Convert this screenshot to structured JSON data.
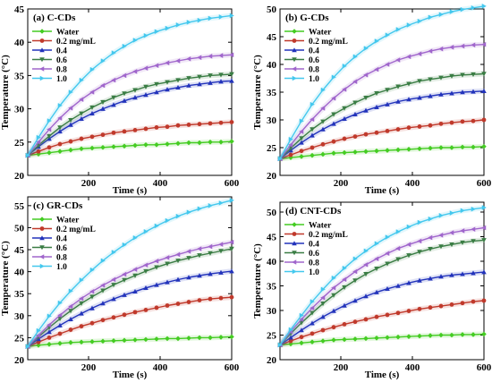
{
  "chart_data": [
    {
      "type": "line",
      "title": "(a) C-CDs",
      "xlabel": "Time (s)",
      "ylabel": "Temperature (°C)",
      "xlim": [
        30,
        600
      ],
      "ylim": [
        20,
        45
      ],
      "xticks": [
        200,
        400,
        600
      ],
      "yticks": [
        20,
        25,
        30,
        35,
        40,
        45
      ],
      "x": [
        30,
        60,
        90,
        120,
        150,
        180,
        210,
        240,
        270,
        300,
        330,
        360,
        390,
        420,
        450,
        480,
        510,
        540,
        570,
        600
      ],
      "legend_position": "top-left",
      "series": [
        {
          "name": "Water",
          "color": "#44cc22",
          "marker": "diamond",
          "values": [
            23.0,
            23.2,
            23.4,
            23.6,
            23.8,
            24.0,
            24.1,
            24.2,
            24.3,
            24.4,
            24.5,
            24.6,
            24.6,
            24.7,
            24.8,
            24.9,
            24.9,
            25.0,
            25.0,
            25.1
          ]
        },
        {
          "name": "0.2 mg/mL",
          "color": "#c0392b",
          "marker": "circle",
          "values": [
            23.0,
            23.6,
            24.2,
            24.7,
            25.1,
            25.5,
            25.8,
            26.1,
            26.4,
            26.6,
            26.8,
            27.0,
            27.2,
            27.3,
            27.5,
            27.6,
            27.7,
            27.8,
            27.9,
            28.0
          ]
        },
        {
          "name": "0.4",
          "color": "#2233bb",
          "marker": "triangle-up",
          "values": [
            23.0,
            24.3,
            25.5,
            26.6,
            27.6,
            28.5,
            29.3,
            30.0,
            30.6,
            31.2,
            31.7,
            32.1,
            32.5,
            32.9,
            33.2,
            33.5,
            33.7,
            33.9,
            34.1,
            34.2
          ]
        },
        {
          "name": "0.6",
          "color": "#3a7d44",
          "marker": "triangle-down",
          "values": [
            23.0,
            24.5,
            25.9,
            27.2,
            28.3,
            29.3,
            30.2,
            31.0,
            31.7,
            32.3,
            32.8,
            33.3,
            33.7,
            34.0,
            34.3,
            34.6,
            34.8,
            35.0,
            35.1,
            35.2
          ]
        },
        {
          "name": "0.8",
          "color": "#a066cc",
          "marker": "triangle-left",
          "values": [
            23.0,
            25.0,
            26.9,
            28.6,
            30.1,
            31.4,
            32.5,
            33.5,
            34.3,
            35.0,
            35.6,
            36.1,
            36.5,
            36.9,
            37.2,
            37.5,
            37.7,
            37.9,
            38.0,
            38.1
          ]
        },
        {
          "name": "1.0",
          "color": "#44c8ee",
          "marker": "triangle-right",
          "values": [
            23.0,
            25.7,
            28.2,
            30.5,
            32.5,
            34.3,
            35.9,
            37.2,
            38.4,
            39.4,
            40.3,
            41.0,
            41.6,
            42.1,
            42.6,
            43.0,
            43.3,
            43.6,
            43.8,
            44.0
          ]
        }
      ]
    },
    {
      "type": "line",
      "title": "(b) G-CDs",
      "xlabel": "Time (s)",
      "ylabel": "Temperature (°C)",
      "xlim": [
        30,
        600
      ],
      "ylim": [
        20,
        50
      ],
      "xticks": [
        200,
        400,
        600
      ],
      "yticks": [
        20,
        25,
        30,
        35,
        40,
        45,
        50
      ],
      "x": [
        30,
        60,
        90,
        120,
        150,
        180,
        210,
        240,
        270,
        300,
        330,
        360,
        390,
        420,
        450,
        480,
        510,
        540,
        570,
        600
      ],
      "legend_position": "top-left",
      "series": [
        {
          "name": "Water",
          "color": "#44cc22",
          "marker": "diamond",
          "values": [
            23.0,
            23.2,
            23.4,
            23.6,
            23.8,
            24.0,
            24.1,
            24.2,
            24.3,
            24.4,
            24.5,
            24.6,
            24.7,
            24.8,
            24.9,
            25.0,
            25.0,
            25.1,
            25.1,
            25.2
          ]
        },
        {
          "name": "0.2 mg/mL",
          "color": "#c0392b",
          "marker": "circle",
          "values": [
            23.0,
            23.7,
            24.4,
            25.0,
            25.6,
            26.1,
            26.6,
            27.0,
            27.4,
            27.7,
            28.0,
            28.3,
            28.6,
            28.8,
            29.0,
            29.3,
            29.5,
            29.7,
            29.8,
            30.0
          ]
        },
        {
          "name": "0.4",
          "color": "#2233bb",
          "marker": "triangle-up",
          "values": [
            23.0,
            24.5,
            25.9,
            27.2,
            28.3,
            29.3,
            30.2,
            31.0,
            31.7,
            32.3,
            32.8,
            33.3,
            33.7,
            34.0,
            34.3,
            34.6,
            34.8,
            35.0,
            35.1,
            35.2
          ]
        },
        {
          "name": "0.6",
          "color": "#3a7d44",
          "marker": "triangle-down",
          "values": [
            23.0,
            24.9,
            26.7,
            28.3,
            29.7,
            31.0,
            32.1,
            33.1,
            34.0,
            34.8,
            35.4,
            36.0,
            36.5,
            37.0,
            37.3,
            37.6,
            37.9,
            38.1,
            38.2,
            38.3
          ]
        },
        {
          "name": "0.8",
          "color": "#a066cc",
          "marker": "triangle-left",
          "values": [
            23.0,
            25.5,
            27.9,
            30.1,
            32.1,
            33.9,
            35.5,
            36.9,
            38.1,
            39.1,
            40.0,
            40.8,
            41.4,
            41.9,
            42.4,
            42.8,
            43.1,
            43.3,
            43.5,
            43.6
          ]
        },
        {
          "name": "1.0",
          "color": "#44c8ee",
          "marker": "triangle-right",
          "values": [
            23.0,
            26.5,
            29.8,
            32.8,
            35.4,
            37.7,
            39.7,
            41.4,
            42.9,
            44.2,
            45.3,
            46.3,
            47.1,
            47.8,
            48.5,
            49.0,
            49.5,
            49.9,
            50.2,
            50.5
          ]
        }
      ]
    },
    {
      "type": "line",
      "title": "(c) GR-CDs",
      "xlabel": "Time (s)",
      "ylabel": "Temperature (°C)",
      "xlim": [
        30,
        600
      ],
      "ylim": [
        20,
        57
      ],
      "xticks": [
        200,
        400,
        600
      ],
      "yticks": [
        20,
        25,
        30,
        35,
        40,
        45,
        50,
        55
      ],
      "x": [
        30,
        60,
        90,
        120,
        150,
        180,
        210,
        240,
        270,
        300,
        330,
        360,
        390,
        420,
        450,
        480,
        510,
        540,
        570,
        600
      ],
      "legend_position": "top-left",
      "series": [
        {
          "name": "Water",
          "color": "#44cc22",
          "marker": "diamond",
          "values": [
            23.0,
            23.3,
            23.5,
            23.7,
            23.9,
            24.0,
            24.1,
            24.2,
            24.3,
            24.4,
            24.5,
            24.6,
            24.7,
            24.8,
            24.8,
            24.9,
            25.0,
            25.0,
            25.1,
            25.2
          ]
        },
        {
          "name": "0.2 mg/mL",
          "color": "#c0392b",
          "marker": "circle",
          "values": [
            23.0,
            24.0,
            25.0,
            25.9,
            26.8,
            27.6,
            28.3,
            29.0,
            29.6,
            30.2,
            30.8,
            31.3,
            31.8,
            32.3,
            32.7,
            33.1,
            33.5,
            33.8,
            34.0,
            34.2
          ]
        },
        {
          "name": "0.4",
          "color": "#2233bb",
          "marker": "triangle-up",
          "values": [
            23.0,
            24.7,
            26.3,
            27.8,
            29.2,
            30.5,
            31.7,
            32.8,
            33.8,
            34.7,
            35.5,
            36.3,
            37.0,
            37.6,
            38.2,
            38.7,
            39.1,
            39.5,
            39.8,
            40.1
          ]
        },
        {
          "name": "0.6",
          "color": "#3a7d44",
          "marker": "triangle-down",
          "values": [
            23.0,
            25.2,
            27.3,
            29.3,
            31.1,
            32.8,
            34.3,
            35.7,
            37.0,
            38.1,
            39.1,
            40.1,
            41.0,
            41.8,
            42.5,
            43.1,
            43.7,
            44.2,
            44.7,
            45.2
          ]
        },
        {
          "name": "0.8",
          "color": "#a066cc",
          "marker": "triangle-left",
          "values": [
            23.0,
            25.5,
            27.9,
            30.1,
            32.1,
            33.9,
            35.5,
            36.9,
            38.2,
            39.4,
            40.5,
            41.5,
            42.4,
            43.2,
            43.9,
            44.6,
            45.2,
            45.7,
            46.2,
            46.7
          ]
        },
        {
          "name": "1.0",
          "color": "#44c8ee",
          "marker": "triangle-right",
          "values": [
            23.0,
            26.6,
            29.9,
            32.9,
            35.6,
            38.1,
            40.4,
            42.5,
            44.4,
            46.1,
            47.7,
            49.1,
            50.4,
            51.6,
            52.6,
            53.5,
            54.3,
            55.0,
            55.6,
            56.2
          ]
        }
      ]
    },
    {
      "type": "line",
      "title": "(d) CNT-CDs",
      "xlabel": "Time (s)",
      "ylabel": "Temperature (°C)",
      "xlim": [
        30,
        600
      ],
      "ylim": [
        20,
        52
      ],
      "xticks": [
        200,
        400,
        600
      ],
      "yticks": [
        20,
        25,
        30,
        35,
        40,
        45,
        50
      ],
      "x": [
        30,
        60,
        90,
        120,
        150,
        180,
        210,
        240,
        270,
        300,
        330,
        360,
        390,
        420,
        450,
        480,
        510,
        540,
        570,
        600
      ],
      "legend_position": "top-left",
      "series": [
        {
          "name": "Water",
          "color": "#44cc22",
          "marker": "diamond",
          "values": [
            23.0,
            23.2,
            23.4,
            23.6,
            23.8,
            24.0,
            24.1,
            24.2,
            24.3,
            24.4,
            24.5,
            24.6,
            24.7,
            24.8,
            24.9,
            25.0,
            25.0,
            25.1,
            25.1,
            25.2
          ]
        },
        {
          "name": "0.2 mg/mL",
          "color": "#c0392b",
          "marker": "circle",
          "values": [
            23.0,
            23.8,
            24.6,
            25.3,
            26.0,
            26.6,
            27.2,
            27.7,
            28.2,
            28.7,
            29.1,
            29.5,
            29.9,
            30.3,
            30.6,
            30.9,
            31.2,
            31.5,
            31.8,
            32.0
          ]
        },
        {
          "name": "0.4",
          "color": "#2233bb",
          "marker": "triangle-up",
          "values": [
            23.0,
            24.5,
            26.0,
            27.4,
            28.7,
            29.9,
            31.0,
            32.0,
            32.9,
            33.7,
            34.4,
            35.0,
            35.6,
            36.1,
            36.5,
            36.9,
            37.2,
            37.4,
            37.6,
            37.8
          ]
        },
        {
          "name": "0.6",
          "color": "#3a7d44",
          "marker": "triangle-down",
          "values": [
            23.0,
            25.3,
            27.5,
            29.5,
            31.4,
            33.1,
            34.7,
            36.1,
            37.4,
            38.5,
            39.5,
            40.4,
            41.2,
            41.9,
            42.5,
            43.0,
            43.4,
            43.8,
            44.1,
            44.3
          ]
        },
        {
          "name": "0.8",
          "color": "#a066cc",
          "marker": "triangle-left",
          "values": [
            23.0,
            25.7,
            28.2,
            30.5,
            32.6,
            34.6,
            36.3,
            37.9,
            39.3,
            40.5,
            41.6,
            42.6,
            43.4,
            44.1,
            44.8,
            45.3,
            45.8,
            46.2,
            46.5,
            46.8
          ]
        },
        {
          "name": "1.0",
          "color": "#44c8ee",
          "marker": "triangle-right",
          "values": [
            23.0,
            26.1,
            29.0,
            31.8,
            34.3,
            36.6,
            38.6,
            40.5,
            42.1,
            43.6,
            44.9,
            46.0,
            47.0,
            47.9,
            48.6,
            49.3,
            49.8,
            50.3,
            50.6,
            50.9
          ]
        }
      ]
    }
  ]
}
